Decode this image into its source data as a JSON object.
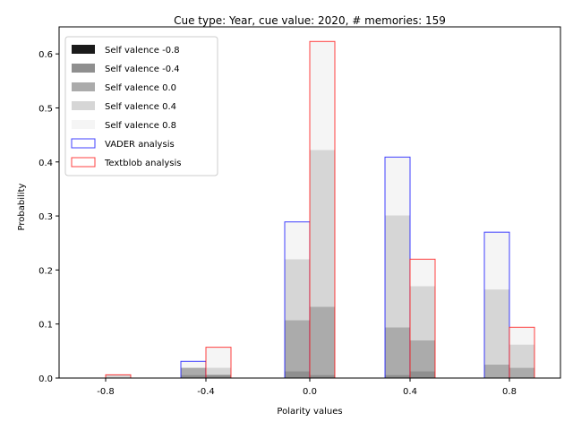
{
  "chart_data": {
    "type": "bar",
    "title": "Cue type: Year, cue value: 2020, # memories: 159",
    "xlabel": "Polarity values",
    "ylabel": "Probability",
    "categories": [
      "-0.8",
      "-0.4",
      "0.0",
      "0.4",
      "0.8"
    ],
    "ylim": [
      0,
      0.65
    ],
    "yticks": [
      "0.0",
      "0.1",
      "0.2",
      "0.3",
      "0.4",
      "0.5",
      "0.6"
    ],
    "grid": false,
    "legend_position": "top-left",
    "series": [
      {
        "name": "VADER analysis",
        "edge_color": "#0000ff",
        "total": [
          0.0,
          0.031,
          0.289,
          0.409,
          0.27
        ],
        "stacks": [
          {
            "name": "Self valence -0.8",
            "values": [
              0.0,
              0.0,
              0.0,
              0.0,
              0.0
            ]
          },
          {
            "name": "Self valence -0.4",
            "values": [
              0.0,
              0.006,
              0.013,
              0.006,
              0.0
            ]
          },
          {
            "name": "Self valence 0.0",
            "values": [
              0.0,
              0.013,
              0.094,
              0.088,
              0.025
            ]
          },
          {
            "name": "Self valence 0.4",
            "values": [
              0.0,
              0.0,
              0.113,
              0.207,
              0.139
            ]
          },
          {
            "name": "Self valence 0.8",
            "values": [
              0.0,
              0.012,
              0.069,
              0.108,
              0.106
            ]
          }
        ]
      },
      {
        "name": "Textblob analysis",
        "edge_color": "#ff0000",
        "total": [
          0.006,
          0.057,
          0.623,
          0.22,
          0.094
        ],
        "stacks": [
          {
            "name": "Self valence -0.8",
            "values": [
              0.0,
              0.0,
              0.0,
              0.0,
              0.0
            ]
          },
          {
            "name": "Self valence -0.4",
            "values": [
              0.0,
              0.006,
              0.006,
              0.013,
              0.0
            ]
          },
          {
            "name": "Self valence 0.0",
            "values": [
              0.0,
              0.0,
              0.126,
              0.057,
              0.019
            ]
          },
          {
            "name": "Self valence 0.4",
            "values": [
              0.006,
              0.013,
              0.29,
              0.1,
              0.043
            ]
          },
          {
            "name": "Self valence 0.8",
            "values": [
              0.0,
              0.038,
              0.201,
              0.05,
              0.032
            ]
          }
        ]
      }
    ],
    "legend": [
      {
        "label": "Self valence -0.8",
        "fill": "#1a1a1a",
        "edge": "none"
      },
      {
        "label": "Self valence -0.4",
        "fill": "#8f8f8f",
        "edge": "none"
      },
      {
        "label": "Self valence 0.0",
        "fill": "#ababab",
        "edge": "none"
      },
      {
        "label": "Self valence 0.4",
        "fill": "#d6d6d6",
        "edge": "none"
      },
      {
        "label": "Self valence 0.8",
        "fill": "#f5f5f5",
        "edge": "none"
      },
      {
        "label": "VADER analysis",
        "fill": "none",
        "edge": "#0000ff"
      },
      {
        "label": "Textblob analysis",
        "fill": "none",
        "edge": "#ff0000"
      }
    ],
    "stack_colors": [
      "#1a1a1a",
      "#8f8f8f",
      "#ababab",
      "#d6d6d6",
      "#f5f5f5"
    ]
  }
}
